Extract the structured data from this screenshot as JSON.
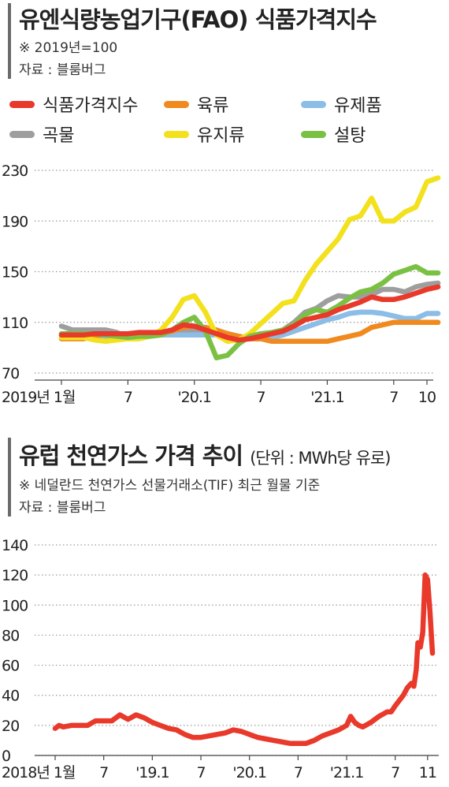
{
  "chart_data": [
    {
      "type": "line",
      "title": "유엔식량농업기구(FAO) 식품가격지수",
      "notes": [
        "※ 2019년=100",
        "자료 : 블룸버그"
      ],
      "ylim": [
        70,
        230
      ],
      "yticks": [
        "230",
        "190",
        "150",
        "110",
        "70"
      ],
      "ytick_values": [
        230,
        190,
        150,
        110,
        70
      ],
      "xticks": [
        {
          "label": "2019년 1월",
          "x": 0
        },
        {
          "label": "7",
          "x": 6
        },
        {
          "label": "'20.1",
          "x": 12
        },
        {
          "label": "7",
          "x": 18
        },
        {
          "label": "'21.1",
          "x": 24
        },
        {
          "label": "7",
          "x": 30
        },
        {
          "label": "10",
          "x": 33
        }
      ],
      "x_range": [
        0,
        33
      ],
      "grid": "horizontal-dotted",
      "legend_position": "top",
      "series": [
        {
          "name": "곡물",
          "color": "#9e9e9e",
          "values": [
            107,
            104,
            104,
            104,
            104,
            102,
            98,
            100,
            101,
            101,
            102,
            104,
            104,
            104,
            103,
            101,
            99,
            97,
            99,
            101,
            104,
            110,
            118,
            121,
            127,
            131,
            130,
            130,
            132,
            136,
            136,
            134,
            138,
            140,
            141
          ]
        },
        {
          "name": "유제품",
          "color": "#8bbde6",
          "values": [
            100,
            100,
            100,
            99,
            99,
            99,
            99,
            100,
            100,
            100,
            100,
            100,
            100,
            100,
            100,
            100,
            99,
            97,
            97,
            98,
            100,
            103,
            106,
            109,
            112,
            114,
            117,
            118,
            118,
            117,
            115,
            113,
            113,
            117,
            117
          ]
        },
        {
          "name": "육류",
          "color": "#f08a1f",
          "values": [
            97,
            97,
            97,
            99,
            101,
            101,
            101,
            101,
            101,
            101,
            103,
            106,
            107,
            106,
            104,
            101,
            99,
            97,
            97,
            95,
            95,
            95,
            95,
            95,
            95,
            97,
            99,
            101,
            106,
            108,
            110,
            110,
            110,
            110,
            110
          ]
        },
        {
          "name": "유지류",
          "color": "#f2e11c",
          "values": [
            98,
            98,
            98,
            96,
            95,
            96,
            97,
            97,
            99,
            104,
            114,
            128,
            131,
            118,
            100,
            95,
            96,
            101,
            109,
            117,
            125,
            127,
            143,
            156,
            166,
            176,
            191,
            194,
            208,
            190,
            190,
            197,
            201,
            221,
            224
          ]
        },
        {
          "name": "설탕",
          "color": "#7ac143",
          "values": [
            101,
            101,
            101,
            101,
            100,
            99,
            98,
            99,
            99,
            100,
            104,
            110,
            114,
            103,
            82,
            84,
            93,
            99,
            101,
            102,
            104,
            108,
            116,
            120,
            118,
            123,
            129,
            134,
            136,
            141,
            148,
            151,
            154,
            149,
            149
          ]
        },
        {
          "name": "식품가격지수",
          "color": "#e8392a",
          "values": [
            100,
            100,
            100,
            101,
            101,
            101,
            101,
            102,
            102,
            102,
            104,
            108,
            107,
            104,
            101,
            98,
            96,
            97,
            99,
            101,
            103,
            107,
            112,
            114,
            116,
            120,
            123,
            126,
            130,
            128,
            128,
            130,
            133,
            136,
            138
          ]
        }
      ]
    },
    {
      "type": "line",
      "title": "유럽 천연가스 가격 추이",
      "unit": "(단위 : MWh당 유로)",
      "notes": [
        "※ 네덜란드 천연가스 선물거래소(TIF) 최근 월물 기준",
        "자료 : 블룸버그"
      ],
      "ylim": [
        0,
        140
      ],
      "yticks": [
        "140",
        "120",
        "100",
        "80",
        "60",
        "40",
        "20",
        "0"
      ],
      "ytick_values": [
        140,
        120,
        100,
        80,
        60,
        40,
        20,
        0
      ],
      "xticks": [
        {
          "label": "2018년 1월",
          "x": 0
        },
        {
          "label": "7",
          "x": 6
        },
        {
          "label": "'19.1",
          "x": 12
        },
        {
          "label": "7",
          "x": 18
        },
        {
          "label": "'20.1",
          "x": 24
        },
        {
          "label": "7",
          "x": 30
        },
        {
          "label": "'21.1",
          "x": 36
        },
        {
          "label": "7",
          "x": 42
        },
        {
          "label": "11",
          "x": 46
        }
      ],
      "x_range": [
        0,
        46.6
      ],
      "grid": "horizontal-dotted",
      "series": [
        {
          "name": "",
          "color": "#e8392a",
          "points": [
            [
              0,
              18
            ],
            [
              0.5,
              20
            ],
            [
              1,
              19
            ],
            [
              2,
              20
            ],
            [
              3,
              20
            ],
            [
              4,
              20
            ],
            [
              5,
              23
            ],
            [
              6,
              23
            ],
            [
              7,
              23
            ],
            [
              8,
              27
            ],
            [
              9,
              24
            ],
            [
              10,
              27
            ],
            [
              11,
              25
            ],
            [
              12,
              22
            ],
            [
              13,
              20
            ],
            [
              14,
              18
            ],
            [
              15,
              17
            ],
            [
              16,
              14
            ],
            [
              17,
              12
            ],
            [
              18,
              12
            ],
            [
              19,
              13
            ],
            [
              20,
              14
            ],
            [
              21,
              15
            ],
            [
              22,
              17
            ],
            [
              23,
              16
            ],
            [
              24,
              14
            ],
            [
              25,
              12
            ],
            [
              26,
              11
            ],
            [
              27,
              10
            ],
            [
              28,
              9
            ],
            [
              29,
              8
            ],
            [
              30,
              8
            ],
            [
              31,
              8
            ],
            [
              32,
              10
            ],
            [
              33,
              13
            ],
            [
              34,
              15
            ],
            [
              35,
              17
            ],
            [
              36,
              20
            ],
            [
              36.5,
              26
            ],
            [
              37,
              22
            ],
            [
              37.5,
              20
            ],
            [
              38,
              19
            ],
            [
              39,
              22
            ],
            [
              40,
              26
            ],
            [
              41,
              29
            ],
            [
              41.5,
              29
            ],
            [
              42,
              33
            ],
            [
              43,
              40
            ],
            [
              43.5,
              45
            ],
            [
              44,
              48
            ],
            [
              44.3,
              46
            ],
            [
              44.6,
              57
            ],
            [
              44.8,
              75
            ],
            [
              45.1,
              72
            ],
            [
              45.4,
              82
            ],
            [
              45.7,
              120
            ],
            [
              46,
              117
            ],
            [
              46.3,
              95
            ],
            [
              46.6,
              68
            ]
          ]
        }
      ]
    }
  ]
}
